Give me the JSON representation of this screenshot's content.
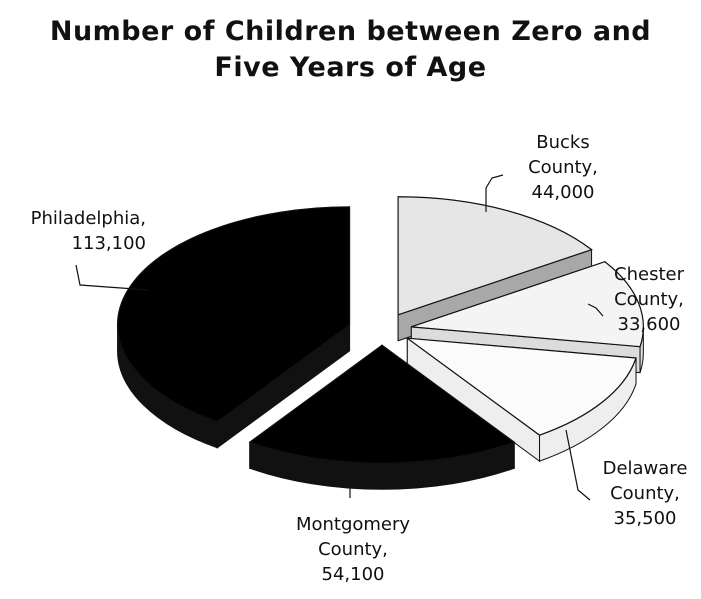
{
  "chart_data": {
    "type": "pie",
    "title": "Number of Children between Zero and\nFive Years of Age",
    "slices": [
      {
        "name": "Bucks County",
        "label_line1": "Bucks",
        "label_line2": "County,",
        "value_text": "44,000",
        "value": 44000,
        "fill": "#e6e6e6",
        "side": "#a8a8a8"
      },
      {
        "name": "Chester County",
        "label_line1": "Chester",
        "label_line2": "County,",
        "value_text": "33,600",
        "value": 33600,
        "fill": "#f4f4f4",
        "side": "#dcdcdc"
      },
      {
        "name": "Delaware County",
        "label_line1": "Delaware",
        "label_line2": "County,",
        "value_text": "35,500",
        "value": 35500,
        "fill": "#fbfbfb",
        "side": "#eeeeee"
      },
      {
        "name": "Montgomery County",
        "label_line1": "Montgomery",
        "label_line2": "County,",
        "value_text": "54,100",
        "value": 54100,
        "fill": "#000000",
        "side": "#111111"
      },
      {
        "name": "Philadelphia",
        "label_line1": "Philadelphia,",
        "label_line2": "",
        "value_text": "113,100",
        "value": 113100,
        "fill": "#000000",
        "side": "#111111"
      }
    ]
  }
}
